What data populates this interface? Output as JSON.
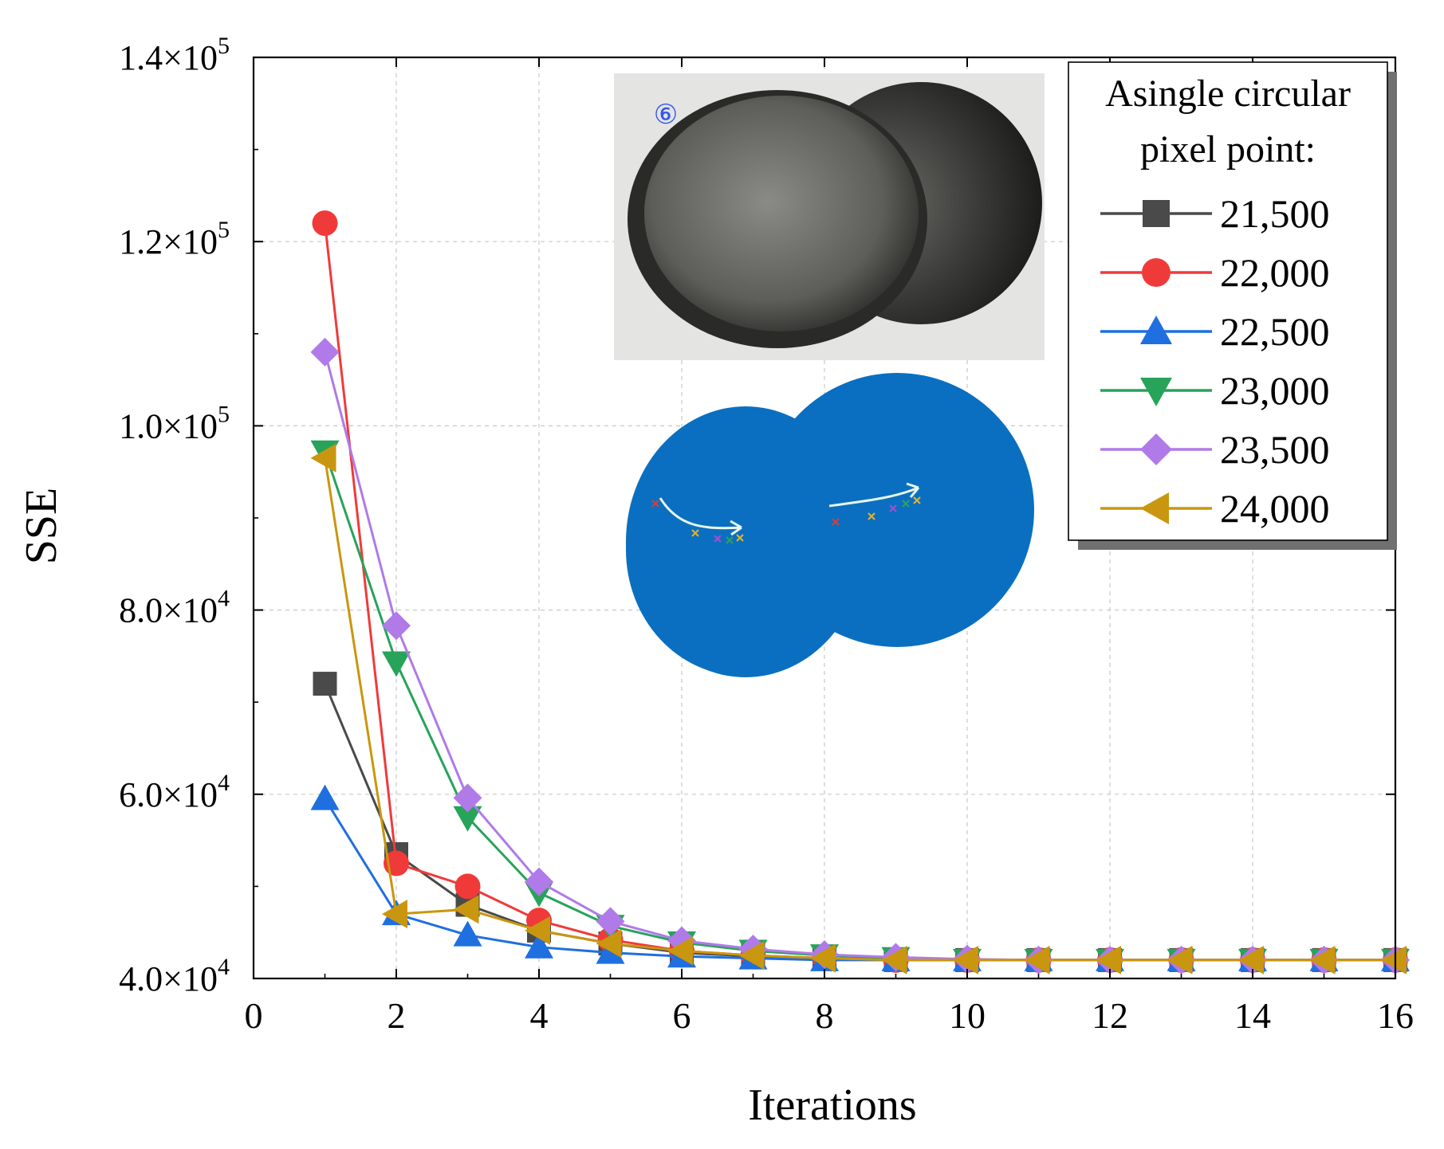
{
  "chart_data": {
    "type": "line",
    "xlabel": "Iterations",
    "ylabel": "SSE",
    "xlim": [
      0,
      16
    ],
    "ylim": [
      40000,
      140000
    ],
    "x_ticks": [
      0,
      2,
      4,
      6,
      8,
      10,
      12,
      14,
      16
    ],
    "y_ticks": [
      {
        "mantissa": "4.0",
        "exp": "4",
        "value": 40000
      },
      {
        "mantissa": "6.0",
        "exp": "4",
        "value": 60000
      },
      {
        "mantissa": "8.0",
        "exp": "4",
        "value": 80000
      },
      {
        "mantissa": "1.0",
        "exp": "5",
        "value": 100000
      },
      {
        "mantissa": "1.2",
        "exp": "5",
        "value": 120000
      },
      {
        "mantissa": "1.4",
        "exp": "5",
        "value": 140000
      }
    ],
    "y_tick_times": "×10",
    "grid": true,
    "legend": {
      "title_line1": "Asingle circular",
      "title_line2": "pixel point:",
      "placement": "top-right"
    },
    "inset": {
      "photo_label": "⑥",
      "description_visible_only": true
    },
    "x": [
      1,
      2,
      3,
      4,
      5,
      6,
      7,
      8,
      9,
      10,
      11,
      12,
      13,
      14,
      15,
      16
    ],
    "series": [
      {
        "name": "21,500",
        "color": "#4a4a4a",
        "marker": "square",
        "values": [
          72000,
          53500,
          48000,
          45200,
          43800,
          42800,
          42400,
          42200,
          42000,
          42000,
          42000,
          42000,
          42000,
          42000,
          42000,
          42000
        ]
      },
      {
        "name": "22,000",
        "color": "#f03a3a",
        "marker": "circle",
        "values": [
          122000,
          52500,
          50000,
          46300,
          44200,
          43000,
          42500,
          42200,
          42000,
          42000,
          42000,
          42000,
          42000,
          42000,
          42000,
          42000
        ]
      },
      {
        "name": "22,500",
        "color": "#1f6fe0",
        "marker": "triangle-up",
        "values": [
          59500,
          47000,
          44700,
          43400,
          42800,
          42400,
          42200,
          42000,
          42000,
          42000,
          42000,
          42000,
          42000,
          42000,
          42000,
          42000
        ]
      },
      {
        "name": "23,000",
        "color": "#27a35a",
        "marker": "triangle-down",
        "values": [
          97200,
          74300,
          57500,
          49300,
          45700,
          43900,
          43000,
          42500,
          42200,
          42000,
          42000,
          42000,
          42000,
          42000,
          42000,
          42000
        ]
      },
      {
        "name": "23,500",
        "color": "#b07ae8",
        "marker": "diamond",
        "values": [
          108000,
          78300,
          59600,
          50500,
          46200,
          44100,
          43200,
          42600,
          42300,
          42100,
          42000,
          42000,
          42000,
          42000,
          42000,
          42000
        ]
      },
      {
        "name": "24,000",
        "color": "#c9960f",
        "marker": "triangle-left",
        "values": [
          96500,
          47000,
          47500,
          45200,
          43800,
          43000,
          42500,
          42200,
          42000,
          42000,
          42000,
          42000,
          42000,
          42000,
          42000,
          42000
        ]
      }
    ]
  }
}
